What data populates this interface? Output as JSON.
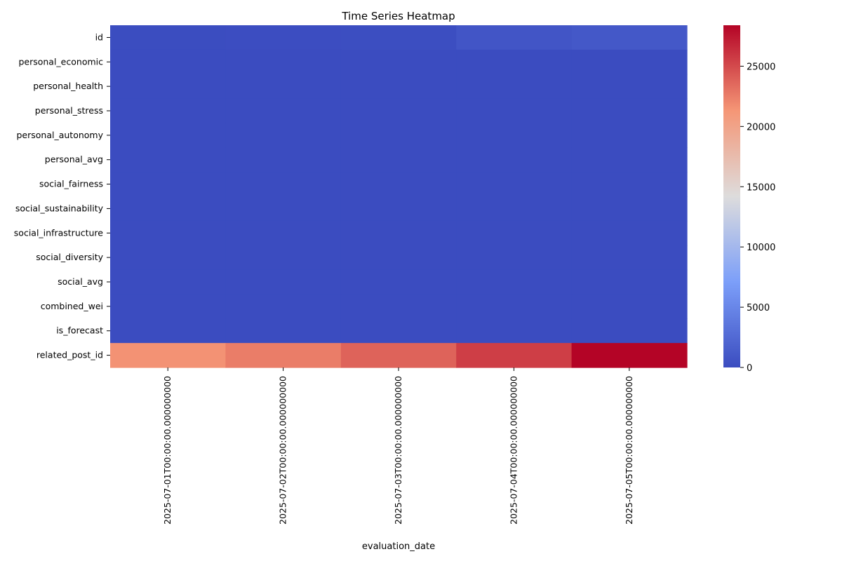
{
  "chart_data": {
    "type": "heatmap",
    "title": "Time Series Heatmap",
    "xlabel": "evaluation_date",
    "ylabel": "",
    "x_categories": [
      "2025-07-01T00:00:00.000000000",
      "2025-07-02T00:00:00.000000000",
      "2025-07-03T00:00:00.000000000",
      "2025-07-04T00:00:00.000000000",
      "2025-07-05T00:00:00.000000000"
    ],
    "y_categories": [
      "id",
      "personal_economic",
      "personal_health",
      "personal_stress",
      "personal_autonomy",
      "personal_avg",
      "social_fairness",
      "social_sustainability",
      "social_infrastructure",
      "social_diversity",
      "social_avg",
      "combined_wei",
      "is_forecast",
      "related_post_id"
    ],
    "values": [
      [
        50,
        100,
        150,
        800,
        1000
      ],
      [
        0,
        0,
        0,
        0,
        0
      ],
      [
        0,
        0,
        0,
        0,
        0
      ],
      [
        0,
        0,
        0,
        0,
        0
      ],
      [
        0,
        0,
        0,
        0,
        0
      ],
      [
        0,
        0,
        0,
        0,
        0
      ],
      [
        0,
        0,
        0,
        0,
        0
      ],
      [
        0,
        0,
        0,
        0,
        0
      ],
      [
        0,
        0,
        0,
        0,
        0
      ],
      [
        0,
        0,
        0,
        0,
        0
      ],
      [
        0,
        0,
        0,
        0,
        0
      ],
      [
        0,
        0,
        0,
        0,
        0
      ],
      [
        0,
        0,
        0,
        0,
        0
      ],
      [
        21500,
        22500,
        23800,
        25600,
        28400
      ]
    ],
    "colorbar": {
      "colormap": "coolwarm",
      "vmin": 0,
      "vmax": 28400,
      "ticks": [
        0,
        5000,
        10000,
        15000,
        20000,
        25000
      ]
    },
    "grid": false
  }
}
